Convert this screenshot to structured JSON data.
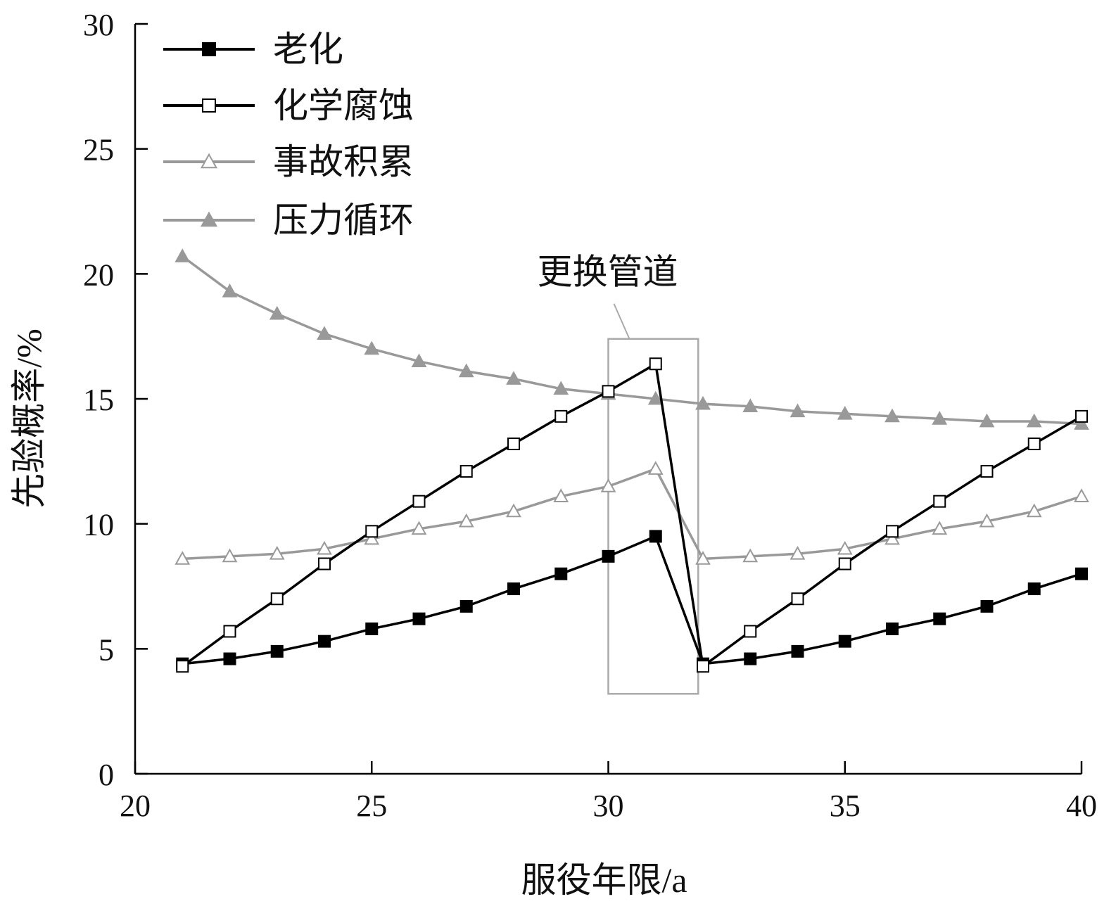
{
  "chart_data": {
    "type": "line",
    "title": "",
    "xlabel": "服役年限/a",
    "ylabel": "先验概率/%",
    "xlim": [
      20,
      40
    ],
    "ylim": [
      0,
      30
    ],
    "xticks": [
      20,
      25,
      30,
      35,
      40
    ],
    "yticks": [
      0,
      5,
      10,
      15,
      20,
      25,
      30
    ],
    "grid": false,
    "legend_position": "top-left",
    "x": [
      21,
      22,
      23,
      24,
      25,
      26,
      27,
      28,
      29,
      30,
      31,
      32,
      33,
      34,
      35,
      36,
      37,
      38,
      39,
      40
    ],
    "series": [
      {
        "name": "老化",
        "color": "#000000",
        "marker": "filled-square",
        "values": [
          4.4,
          4.6,
          4.9,
          5.3,
          5.8,
          6.2,
          6.7,
          7.4,
          8.0,
          8.7,
          9.5,
          4.4,
          4.6,
          4.9,
          5.3,
          5.8,
          6.2,
          6.7,
          7.4,
          8.0
        ]
      },
      {
        "name": "化学腐蚀",
        "color": "#000000",
        "marker": "open-square",
        "values": [
          4.3,
          5.7,
          7.0,
          8.4,
          9.7,
          10.9,
          12.1,
          13.2,
          14.3,
          15.3,
          16.4,
          4.3,
          5.7,
          7.0,
          8.4,
          9.7,
          10.9,
          12.1,
          13.2,
          14.3
        ]
      },
      {
        "name": "事故积累",
        "color": "#999999",
        "marker": "open-triangle",
        "values": [
          8.6,
          8.7,
          8.8,
          9.0,
          9.4,
          9.8,
          10.1,
          10.5,
          11.1,
          11.5,
          12.2,
          8.6,
          8.7,
          8.8,
          9.0,
          9.4,
          9.8,
          10.1,
          10.5,
          11.1
        ]
      },
      {
        "name": "压力循环",
        "color": "#999999",
        "marker": "filled-triangle",
        "values": [
          20.7,
          19.3,
          18.4,
          17.6,
          17.0,
          16.5,
          16.1,
          15.8,
          15.4,
          15.2,
          15.0,
          14.8,
          14.7,
          14.5,
          14.4,
          14.3,
          14.2,
          14.1,
          14.1,
          14.0
        ]
      }
    ],
    "annotation": {
      "text": "更换管道",
      "x_range": [
        30,
        31.9
      ],
      "y_range": [
        3.2,
        17.4
      ]
    }
  }
}
